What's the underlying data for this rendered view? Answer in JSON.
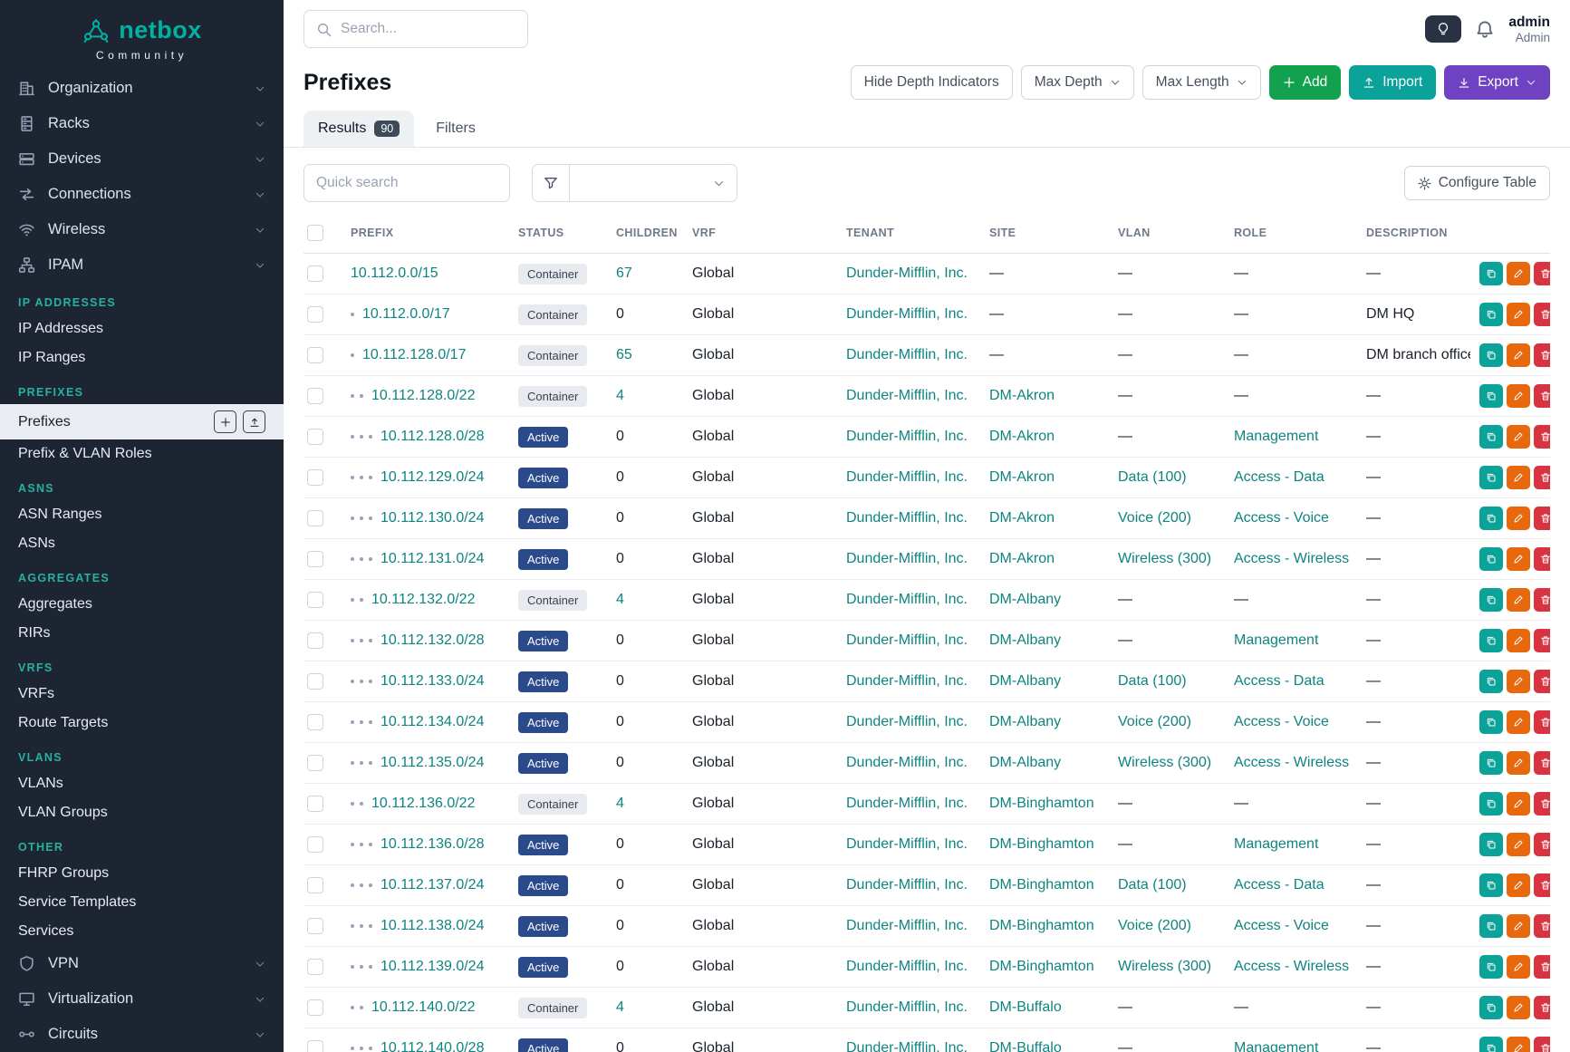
{
  "brand": {
    "name": "netbox",
    "subtitle": "Community"
  },
  "topbar": {
    "search_placeholder": "Search...",
    "user": {
      "name": "admin",
      "role": "Admin"
    }
  },
  "sidebar": {
    "menu": [
      {
        "label": "Organization",
        "icon": "organization-icon"
      },
      {
        "label": "Racks",
        "icon": "racks-icon"
      },
      {
        "label": "Devices",
        "icon": "devices-icon"
      },
      {
        "label": "Connections",
        "icon": "connections-icon"
      },
      {
        "label": "Wireless",
        "icon": "wireless-icon"
      },
      {
        "label": "IPAM",
        "icon": "ipam-icon"
      }
    ],
    "sections": [
      {
        "header": "IP ADDRESSES",
        "items": [
          {
            "label": "IP Addresses"
          },
          {
            "label": "IP Ranges"
          }
        ]
      },
      {
        "header": "PREFIXES",
        "items": [
          {
            "label": "Prefixes",
            "active": true,
            "actions": [
              {
                "name": "add-prefix-button",
                "icon": "plus-icon"
              },
              {
                "name": "import-prefixes-button",
                "icon": "upload-icon"
              }
            ]
          },
          {
            "label": "Prefix & VLAN Roles"
          }
        ]
      },
      {
        "header": "ASNS",
        "items": [
          {
            "label": "ASN Ranges"
          },
          {
            "label": "ASNs"
          }
        ]
      },
      {
        "header": "AGGREGATES",
        "items": [
          {
            "label": "Aggregates"
          },
          {
            "label": "RIRs"
          }
        ]
      },
      {
        "header": "VRFS",
        "items": [
          {
            "label": "VRFs"
          },
          {
            "label": "Route Targets"
          }
        ]
      },
      {
        "header": "VLANS",
        "items": [
          {
            "label": "VLANs"
          },
          {
            "label": "VLAN Groups"
          }
        ]
      },
      {
        "header": "OTHER",
        "items": [
          {
            "label": "FHRP Groups"
          },
          {
            "label": "Service Templates"
          },
          {
            "label": "Services"
          }
        ]
      }
    ],
    "bottom": [
      {
        "label": "VPN",
        "icon": "vpn-icon"
      },
      {
        "label": "Virtualization",
        "icon": "virtualization-icon"
      },
      {
        "label": "Circuits",
        "icon": "circuits-icon"
      }
    ]
  },
  "page": {
    "title": "Prefixes",
    "controls": [
      {
        "label": "Hide Depth Indicators"
      },
      {
        "label": "Max Depth"
      },
      {
        "label": "Max Length"
      },
      {
        "label": "Add"
      },
      {
        "label": "Import"
      },
      {
        "label": "Export"
      }
    ],
    "tabs": [
      {
        "label": "Results",
        "badge": "90",
        "active": true
      },
      {
        "label": "Filters"
      }
    ],
    "toolbar": {
      "quick_search_placeholder": "Quick search",
      "configure_table_label": "Configure Table"
    }
  },
  "colors": {
    "sidebar_bg": "#1d2533",
    "brand_teal": "#00b2a2",
    "link_teal": "#0e8480",
    "active_badge": "#2b4a8c",
    "container_badge_bg": "#e7ebef",
    "add_green": "#13a04f",
    "import_teal": "#0ba29a",
    "export_purple": "#6f42c1",
    "edit_orange": "#e8680e",
    "delete_red": "#d93240"
  },
  "table": {
    "columns": [
      "PREFIX",
      "STATUS",
      "CHILDREN",
      "VRF",
      "TENANT",
      "SITE",
      "VLAN",
      "ROLE",
      "DESCRIPTION"
    ],
    "rows": [
      {
        "depth": 0,
        "prefix": "10.112.0.0/15",
        "status": "Container",
        "children": "67",
        "vrf": "Global",
        "tenant": "Dunder-Mifflin, Inc.",
        "site": "—",
        "vlan": "—",
        "role": "—",
        "description": "—"
      },
      {
        "depth": 1,
        "prefix": "10.112.0.0/17",
        "status": "Container",
        "children": "0",
        "vrf": "Global",
        "tenant": "Dunder-Mifflin, Inc.",
        "site": "—",
        "vlan": "—",
        "role": "—",
        "description": "DM HQ"
      },
      {
        "depth": 1,
        "prefix": "10.112.128.0/17",
        "status": "Container",
        "children": "65",
        "vrf": "Global",
        "tenant": "Dunder-Mifflin, Inc.",
        "site": "—",
        "vlan": "—",
        "role": "—",
        "description": "DM branch offices"
      },
      {
        "depth": 2,
        "prefix": "10.112.128.0/22",
        "status": "Container",
        "children": "4",
        "vrf": "Global",
        "tenant": "Dunder-Mifflin, Inc.",
        "site": "DM-Akron",
        "vlan": "—",
        "role": "—",
        "description": "—"
      },
      {
        "depth": 3,
        "prefix": "10.112.128.0/28",
        "status": "Active",
        "children": "0",
        "vrf": "Global",
        "tenant": "Dunder-Mifflin, Inc.",
        "site": "DM-Akron",
        "vlan": "—",
        "role": "Management",
        "description": "—"
      },
      {
        "depth": 3,
        "prefix": "10.112.129.0/24",
        "status": "Active",
        "children": "0",
        "vrf": "Global",
        "tenant": "Dunder-Mifflin, Inc.",
        "site": "DM-Akron",
        "vlan": "Data (100)",
        "role": "Access - Data",
        "description": "—"
      },
      {
        "depth": 3,
        "prefix": "10.112.130.0/24",
        "status": "Active",
        "children": "0",
        "vrf": "Global",
        "tenant": "Dunder-Mifflin, Inc.",
        "site": "DM-Akron",
        "vlan": "Voice (200)",
        "role": "Access - Voice",
        "description": "—"
      },
      {
        "depth": 3,
        "prefix": "10.112.131.0/24",
        "status": "Active",
        "children": "0",
        "vrf": "Global",
        "tenant": "Dunder-Mifflin, Inc.",
        "site": "DM-Akron",
        "vlan": "Wireless (300)",
        "role": "Access - Wireless",
        "description": "—"
      },
      {
        "depth": 2,
        "prefix": "10.112.132.0/22",
        "status": "Container",
        "children": "4",
        "vrf": "Global",
        "tenant": "Dunder-Mifflin, Inc.",
        "site": "DM-Albany",
        "vlan": "—",
        "role": "—",
        "description": "—"
      },
      {
        "depth": 3,
        "prefix": "10.112.132.0/28",
        "status": "Active",
        "children": "0",
        "vrf": "Global",
        "tenant": "Dunder-Mifflin, Inc.",
        "site": "DM-Albany",
        "vlan": "—",
        "role": "Management",
        "description": "—"
      },
      {
        "depth": 3,
        "prefix": "10.112.133.0/24",
        "status": "Active",
        "children": "0",
        "vrf": "Global",
        "tenant": "Dunder-Mifflin, Inc.",
        "site": "DM-Albany",
        "vlan": "Data (100)",
        "role": "Access - Data",
        "description": "—"
      },
      {
        "depth": 3,
        "prefix": "10.112.134.0/24",
        "status": "Active",
        "children": "0",
        "vrf": "Global",
        "tenant": "Dunder-Mifflin, Inc.",
        "site": "DM-Albany",
        "vlan": "Voice (200)",
        "role": "Access - Voice",
        "description": "—"
      },
      {
        "depth": 3,
        "prefix": "10.112.135.0/24",
        "status": "Active",
        "children": "0",
        "vrf": "Global",
        "tenant": "Dunder-Mifflin, Inc.",
        "site": "DM-Albany",
        "vlan": "Wireless (300)",
        "role": "Access - Wireless",
        "description": "—"
      },
      {
        "depth": 2,
        "prefix": "10.112.136.0/22",
        "status": "Container",
        "children": "4",
        "vrf": "Global",
        "tenant": "Dunder-Mifflin, Inc.",
        "site": "DM-Binghamton",
        "vlan": "—",
        "role": "—",
        "description": "—"
      },
      {
        "depth": 3,
        "prefix": "10.112.136.0/28",
        "status": "Active",
        "children": "0",
        "vrf": "Global",
        "tenant": "Dunder-Mifflin, Inc.",
        "site": "DM-Binghamton",
        "vlan": "—",
        "role": "Management",
        "description": "—"
      },
      {
        "depth": 3,
        "prefix": "10.112.137.0/24",
        "status": "Active",
        "children": "0",
        "vrf": "Global",
        "tenant": "Dunder-Mifflin, Inc.",
        "site": "DM-Binghamton",
        "vlan": "Data (100)",
        "role": "Access - Data",
        "description": "—"
      },
      {
        "depth": 3,
        "prefix": "10.112.138.0/24",
        "status": "Active",
        "children": "0",
        "vrf": "Global",
        "tenant": "Dunder-Mifflin, Inc.",
        "site": "DM-Binghamton",
        "vlan": "Voice (200)",
        "role": "Access - Voice",
        "description": "—"
      },
      {
        "depth": 3,
        "prefix": "10.112.139.0/24",
        "status": "Active",
        "children": "0",
        "vrf": "Global",
        "tenant": "Dunder-Mifflin, Inc.",
        "site": "DM-Binghamton",
        "vlan": "Wireless (300)",
        "role": "Access - Wireless",
        "description": "—"
      },
      {
        "depth": 2,
        "prefix": "10.112.140.0/22",
        "status": "Container",
        "children": "4",
        "vrf": "Global",
        "tenant": "Dunder-Mifflin, Inc.",
        "site": "DM-Buffalo",
        "vlan": "—",
        "role": "—",
        "description": "—"
      },
      {
        "depth": 3,
        "prefix": "10.112.140.0/28",
        "status": "Active",
        "children": "0",
        "vrf": "Global",
        "tenant": "Dunder-Mifflin, Inc.",
        "site": "DM-Buffalo",
        "vlan": "—",
        "role": "Management",
        "description": "—"
      }
    ]
  }
}
